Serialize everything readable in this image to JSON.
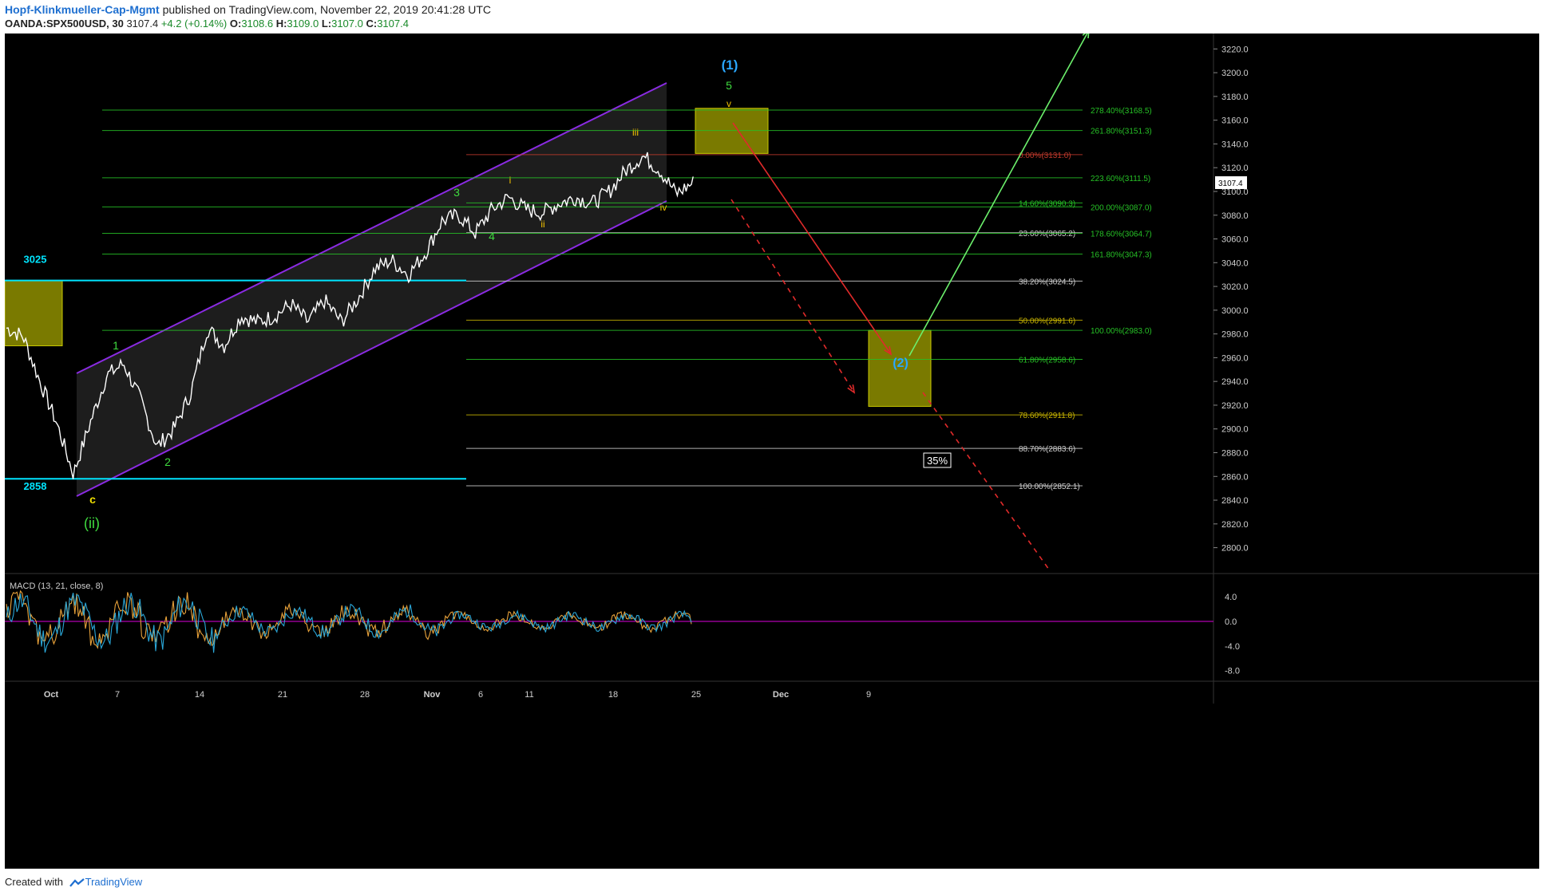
{
  "header": {
    "author": "Hopf-Klinkmueller-Cap-Mgmt",
    "published": "published on TradingView.com, November 22, 2019 20:41:28 UTC",
    "symbol": "OANDA:SPX500USD, 30",
    "last": "3107.4",
    "change": "+4.2 (+0.14%)",
    "o_label": "O:",
    "o_val": "3108.6",
    "h_label": "H:",
    "h_val": "3109.0",
    "l_label": "L:",
    "l_val": "3107.0",
    "c_label": "C:",
    "c_val": "3107.4"
  },
  "footer": {
    "created_with": "Created with",
    "brand": "TradingView"
  },
  "colors": {
    "background": "#000000",
    "candles": "#ffffff",
    "channel": "#8a2be2",
    "fib_green": "#26c126",
    "fib_yellow": "#c8b400",
    "fib_gray": "#cfcfcf",
    "fib_red": "#c0392b",
    "level_cyan": "#00e5ff",
    "box_fill": "#7a7a00",
    "arrow_red": "#e02a2a",
    "arrow_green": "#6cf06c",
    "macd": "#2aa7d8",
    "signal": "#e8a23a",
    "zero_line": "#b000b0"
  },
  "chart_data": [
    {
      "type": "candlestick",
      "symbol": "OANDA:SPX500USD",
      "timeframe": "30",
      "ylim": [
        2780,
        3230
      ],
      "y_ticks": [
        "2800.0",
        "2820.0",
        "2840.0",
        "2860.0",
        "2880.0",
        "2900.0",
        "2920.0",
        "2940.0",
        "2960.0",
        "2980.0",
        "3000.0",
        "3020.0",
        "3040.0",
        "3060.0",
        "3080.0",
        "3100.0",
        "3120.0",
        "3140.0",
        "3160.0",
        "3180.0",
        "3200.0",
        "3220.0"
      ],
      "x_ticks": [
        {
          "label": "Oct",
          "bold": true
        },
        {
          "label": "7",
          "bold": false
        },
        {
          "label": "14",
          "bold": false
        },
        {
          "label": "21",
          "bold": false
        },
        {
          "label": "28",
          "bold": false
        },
        {
          "label": "Nov",
          "bold": true
        },
        {
          "label": "6",
          "bold": false
        },
        {
          "label": "11",
          "bold": false
        },
        {
          "label": "18",
          "bold": false
        },
        {
          "label": "25",
          "bold": false
        },
        {
          "label": "Dec",
          "bold": true
        },
        {
          "label": "9",
          "bold": false
        }
      ],
      "price_label": "3107.4",
      "price_path": [
        [
          "Sep 30",
          2985
        ],
        [
          "Oct 1",
          2978
        ],
        [
          "Oct 2",
          2940
        ],
        [
          "Oct 3",
          2905
        ],
        [
          "Oct 3b",
          2862
        ],
        [
          "Oct 4",
          2905
        ],
        [
          "Oct 7",
          2945
        ],
        [
          "Oct 8",
          2955
        ],
        [
          "Oct 9",
          2925
        ],
        [
          "Oct 10",
          2885
        ],
        [
          "Oct 11",
          2900
        ],
        [
          "Oct 12",
          2930
        ],
        [
          "Oct 14",
          2985
        ],
        [
          "Oct 15",
          2970
        ],
        [
          "Oct 16",
          2995
        ],
        [
          "Oct 17",
          2990
        ],
        [
          "Oct 18",
          2995
        ],
        [
          "Oct 21",
          3005
        ],
        [
          "Oct 22",
          2990
        ],
        [
          "Oct 23",
          3008
        ],
        [
          "Oct 24",
          2990
        ],
        [
          "Oct 25",
          3010
        ],
        [
          "Oct 28",
          3035
        ],
        [
          "Oct 29",
          3042
        ],
        [
          "Oct 30",
          3030
        ],
        [
          "Oct 31",
          3048
        ],
        [
          "Nov 1",
          3075
        ],
        [
          "Nov 4",
          3080
        ],
        [
          "Nov 5",
          3065
        ],
        [
          "Nov 6",
          3085
        ],
        [
          "Nov 7",
          3095
        ],
        [
          "Nov 8",
          3085
        ],
        [
          "Nov 11",
          3082
        ],
        [
          "Nov 12",
          3090
        ],
        [
          "Nov 13",
          3095
        ],
        [
          "Nov 14",
          3090
        ],
        [
          "Nov 15",
          3100
        ],
        [
          "Nov 18",
          3118
        ],
        [
          "Nov 19",
          3130
        ],
        [
          "Nov 20",
          3118
        ],
        [
          "Nov 21",
          3098
        ],
        [
          "Nov 22",
          3107.4
        ]
      ],
      "price_levels": [
        {
          "label": "3025",
          "value": 3025
        },
        {
          "label": "2858",
          "value": 2858
        }
      ],
      "fib_levels": [
        {
          "label": "278.40%(3168.5)",
          "value": 3168.5,
          "color": "green"
        },
        {
          "label": "261.80%(3151.3)",
          "value": 3151.3,
          "color": "green"
        },
        {
          "label": "0.00%(3131.0)",
          "value": 3131.0,
          "color": "red"
        },
        {
          "label": "223.60%(3111.5)",
          "value": 3111.5,
          "color": "green"
        },
        {
          "label": "14.60%(3090.3)",
          "value": 3090.3,
          "color": "green"
        },
        {
          "label": "200.00%(3087.0)",
          "value": 3087.0,
          "color": "green"
        },
        {
          "label": "23.60%(3065.2)",
          "value": 3065.2,
          "color": "gray"
        },
        {
          "label": "178.60%(3064.7)",
          "value": 3064.7,
          "color": "green"
        },
        {
          "label": "161.80%(3047.3)",
          "value": 3047.3,
          "color": "green"
        },
        {
          "label": "38.20%(3024.5)",
          "value": 3024.5,
          "color": "gray"
        },
        {
          "label": "50.00%(2991.6)",
          "value": 2991.6,
          "color": "yellow"
        },
        {
          "label": "100.00%(2983.0)",
          "value": 2983.0,
          "color": "green"
        },
        {
          "label": "61.80%(2958.6)",
          "value": 2958.6,
          "color": "green"
        },
        {
          "label": "78.60%(2911.8)",
          "value": 2911.8,
          "color": "yellow"
        },
        {
          "label": "88.70%(2883.6)",
          "value": 2883.6,
          "color": "gray"
        },
        {
          "label": "100.00%(2852.1)",
          "value": 2852.1,
          "color": "gray"
        }
      ],
      "wave_labels": [
        {
          "text": "(1)",
          "color": "#2aa7ff",
          "bold": true
        },
        {
          "text": "5",
          "color": "#3fdc3f",
          "bold": false
        },
        {
          "text": "v",
          "color": "#f0c000",
          "bold": false
        },
        {
          "text": "iii",
          "color": "#f0c000",
          "bold": false
        },
        {
          "text": "i",
          "color": "#f0c000",
          "bold": false
        },
        {
          "text": "3",
          "color": "#3fdc3f",
          "bold": false
        },
        {
          "text": "ii",
          "color": "#f0c000",
          "bold": false
        },
        {
          "text": "4",
          "color": "#3fdc3f",
          "bold": false
        },
        {
          "text": "iv",
          "color": "#f0c000",
          "bold": false
        },
        {
          "text": "1",
          "color": "#3fdc3f",
          "bold": false
        },
        {
          "text": "2",
          "color": "#3fdc3f",
          "bold": false
        },
        {
          "text": "c",
          "color": "#f0e000",
          "bold": true
        },
        {
          "text": "(ii)",
          "color": "#3fdc3f",
          "bold": false
        },
        {
          "text": "(2)",
          "color": "#2aa7ff",
          "bold": true
        }
      ],
      "annotations": [
        {
          "text": "35%"
        }
      ]
    },
    {
      "type": "line",
      "title": "MACD (13, 21, close, 8)",
      "ylim": [
        -9.5,
        8
      ],
      "y_ticks": [
        "4.0",
        "0.0",
        "-4.0",
        "-8.0"
      ]
    }
  ]
}
